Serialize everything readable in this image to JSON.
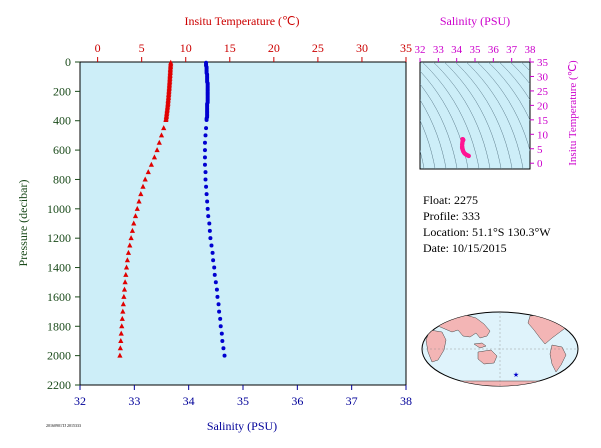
{
  "chart_data": [
    {
      "type": "scatter",
      "x_top_label": "Insitu Temperature (℃)",
      "x_top_lim": [
        -2,
        35
      ],
      "x_top_ticks": [
        0,
        5,
        10,
        15,
        20,
        25,
        30,
        35
      ],
      "x_bottom_label": "Salinity (PSU)",
      "x_bottom_lim": [
        32,
        38
      ],
      "x_bottom_ticks": [
        32,
        33,
        34,
        35,
        36,
        37,
        38
      ],
      "ylabel": "Pressure (decibar)",
      "ylim": [
        2200,
        0
      ],
      "y_ticks": [
        0,
        200,
        400,
        600,
        800,
        1000,
        1200,
        1400,
        1600,
        1800,
        2000,
        2200
      ],
      "colors": {
        "temperature": "#e00000",
        "salinity": "#0000d0",
        "temp_axis": "#cc0000",
        "sal_axis": "#000099",
        "pressure_axis": "#1a4a1a",
        "background": "#cdeef8"
      },
      "series": [
        {
          "name": "Insitu Temperature",
          "axis": "top",
          "pressure": [
            5,
            15,
            25,
            35,
            45,
            55,
            65,
            75,
            85,
            95,
            105,
            115,
            125,
            135,
            145,
            155,
            165,
            175,
            185,
            195,
            205,
            215,
            225,
            235,
            245,
            255,
            265,
            275,
            285,
            295,
            305,
            315,
            325,
            335,
            345,
            355,
            365,
            375,
            385,
            395,
            450,
            500,
            550,
            600,
            650,
            700,
            750,
            800,
            850,
            900,
            950,
            1000,
            1050,
            1100,
            1150,
            1200,
            1250,
            1300,
            1350,
            1400,
            1450,
            1500,
            1550,
            1600,
            1650,
            1700,
            1750,
            1800,
            1850,
            1900,
            1950,
            2000
          ],
          "values": [
            8.3,
            8.3,
            8.28,
            8.28,
            8.26,
            8.25,
            8.25,
            8.24,
            8.22,
            8.22,
            8.2,
            8.2,
            8.18,
            8.18,
            8.16,
            8.15,
            8.14,
            8.13,
            8.12,
            8.1,
            8.09,
            8.08,
            8.06,
            8.05,
            8.04,
            8.02,
            8.0,
            7.99,
            7.98,
            7.96,
            7.94,
            7.92,
            7.9,
            7.88,
            7.86,
            7.84,
            7.82,
            7.8,
            7.78,
            7.75,
            7.5,
            7.25,
            7.0,
            6.75,
            6.45,
            6.1,
            5.75,
            5.4,
            5.15,
            4.9,
            4.7,
            4.5,
            4.3,
            4.1,
            3.95,
            3.8,
            3.65,
            3.5,
            3.38,
            3.28,
            3.2,
            3.12,
            3.05,
            2.98,
            2.92,
            2.86,
            2.8,
            2.74,
            2.68,
            2.63,
            2.58,
            2.53
          ]
        },
        {
          "name": "Salinity",
          "axis": "bottom",
          "pressure": [
            5,
            15,
            25,
            35,
            45,
            55,
            65,
            75,
            85,
            95,
            105,
            115,
            125,
            135,
            145,
            155,
            165,
            175,
            185,
            195,
            205,
            215,
            225,
            235,
            245,
            255,
            265,
            275,
            285,
            295,
            305,
            315,
            325,
            335,
            345,
            355,
            365,
            375,
            385,
            395,
            450,
            500,
            550,
            600,
            650,
            700,
            750,
            800,
            850,
            900,
            950,
            1000,
            1050,
            1100,
            1150,
            1200,
            1250,
            1300,
            1350,
            1400,
            1450,
            1500,
            1550,
            1600,
            1650,
            1700,
            1750,
            1800,
            1850,
            1900,
            1950,
            2000
          ],
          "values": [
            34.32,
            34.32,
            34.32,
            34.33,
            34.33,
            34.33,
            34.33,
            34.33,
            34.34,
            34.34,
            34.34,
            34.34,
            34.34,
            34.34,
            34.35,
            34.35,
            34.35,
            34.35,
            34.35,
            34.35,
            34.35,
            34.35,
            34.35,
            34.35,
            34.35,
            34.35,
            34.35,
            34.35,
            34.34,
            34.34,
            34.34,
            34.34,
            34.34,
            34.34,
            34.34,
            34.34,
            34.34,
            34.34,
            34.33,
            34.33,
            34.32,
            34.31,
            34.3,
            34.3,
            34.3,
            34.3,
            34.31,
            34.31,
            34.32,
            34.33,
            34.34,
            34.35,
            34.36,
            34.38,
            34.39,
            34.4,
            34.42,
            34.44,
            34.45,
            34.47,
            34.48,
            34.5,
            34.52,
            34.53,
            34.55,
            34.56,
            34.58,
            34.59,
            34.61,
            34.62,
            34.64,
            34.66
          ]
        }
      ]
    },
    {
      "type": "scatter",
      "title": "Salinity (PSU)",
      "xlim": [
        32,
        38
      ],
      "x_ticks": [
        "32",
        "33",
        "34",
        "35",
        "36",
        "37",
        "38"
      ],
      "ylabel": "Insitu Temperature (℃)",
      "ylim": [
        -2,
        35
      ],
      "y_ticks": [
        "0",
        "5",
        "10",
        "15",
        "20",
        "25",
        "30",
        "35"
      ],
      "colors": {
        "axis": "#cc00cc",
        "points": "#ff1493",
        "background": "#cdeef8",
        "contours": "#5a7a8a"
      },
      "x": [
        34.32,
        34.33,
        34.34,
        34.35,
        34.35,
        34.35,
        34.34,
        34.34,
        34.33,
        34.32,
        34.31,
        34.3,
        34.3,
        34.3,
        34.31,
        34.32,
        34.34,
        34.36,
        34.4,
        34.45,
        34.5,
        34.55,
        34.6,
        34.66
      ],
      "y": [
        8.3,
        8.28,
        8.22,
        8.15,
        8.08,
        8.0,
        7.94,
        7.86,
        7.8,
        7.5,
        7.0,
        6.45,
        5.75,
        5.4,
        5.15,
        4.9,
        4.5,
        4.1,
        3.65,
        3.28,
        3.05,
        2.86,
        2.68,
        2.53
      ]
    }
  ],
  "info": {
    "float": "Float: 2275",
    "profile": "Profile: 333",
    "location": "Location: 51.1°S 130.3°W",
    "date": "Date: 10/15/2015"
  },
  "map": {
    "marker": "★",
    "marker_color": "#0000cc",
    "land_color": "#f3b5b5",
    "ocean_color": "#dff3fb"
  },
  "footnote": "20160901TJ 2015333"
}
